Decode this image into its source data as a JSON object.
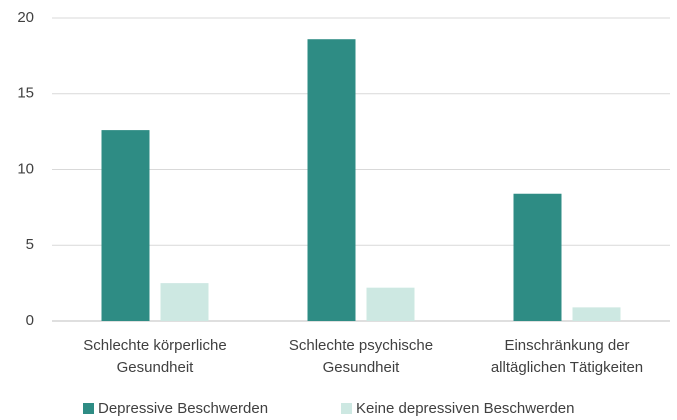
{
  "chart_data": {
    "type": "bar",
    "categories": [
      "Schlechte körperliche\nGesundheit",
      "Schlechte psychische\nGesundheit",
      "Einschränkung der\nalltäglichen Tätigkeiten"
    ],
    "series": [
      {
        "name": "Depressive Beschwerden",
        "color": "#2e8c84",
        "values": [
          12.6,
          18.6,
          8.4
        ]
      },
      {
        "name": "Keine depressiven Beschwerden",
        "color": "#cde8e2",
        "values": [
          2.5,
          2.2,
          0.9
        ]
      }
    ],
    "ylim": [
      0,
      20
    ],
    "yticks": [
      0,
      5,
      10,
      15,
      20
    ],
    "grid": true,
    "legend": "bottom"
  }
}
